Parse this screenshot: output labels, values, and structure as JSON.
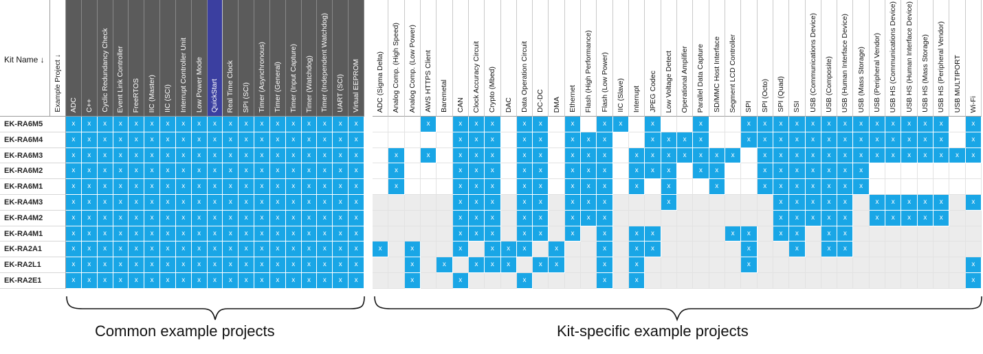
{
  "header": {
    "kit_name_label": "Kit Name ↓",
    "example_project_label": "Example Project ↓"
  },
  "colors": {
    "common_header": "#5b5b5b",
    "highlight_header": "#3b3fa0",
    "checked_cell": "#19a6e6"
  },
  "common_projects": [
    "ADC",
    "C++",
    "Cyclic Redundancy Check",
    "Event Link Controller",
    "FreeRTOS",
    "IIC (Master)",
    "IIC (SCI)",
    "Interrupt Controller Unit",
    "Low Power Mode",
    "QuickStart",
    "Real Time Clock",
    "SPI (SCI)",
    "Timer (Asynchronous)",
    "Timer (General)",
    "Timer (Input Capture)",
    "Timer (Watchdog)",
    "Timer (Independent Watchdog)",
    "UART (SCI)",
    "Virtual EEPROM"
  ],
  "highlighted_project": "QuickStart",
  "specific_projects": [
    "ADC (Sigma Delta)",
    "Analog Comp. (High Speed)",
    "Analog Comp. (Low Power)",
    "AWS HTTPS Client",
    "Baremetal",
    "CAN",
    "Clock Accuracy Circuit",
    "Crypto (Mbed)",
    "DAC",
    "Data Operation Circuit",
    "DC-DC",
    "DMA",
    "Ethernet",
    "Flash (High Performance)",
    "Flash (Low Power)",
    "IIC (Slave)",
    "Interrupt",
    "JPEG Codec",
    "Low Voltage Detect",
    "Operational Amplifier",
    "Parallel Data Capture",
    "SD/MMC Host Interface",
    "Segment LCD Controller",
    "SPI",
    "SPI (Octo)",
    "SPI (Quad)",
    "SSI",
    "USB (Communications Device)",
    "USB (Composite)",
    "USB (Human Interface Device)",
    "USB (Mass Storage)",
    "USB (Peripheral Vendor)",
    "USB HS (Communications Device)",
    "USB HS (Human Interface Device)",
    "USB HS (Mass Storage)",
    "USB HS (Peripheral Vendor)",
    "USB MULTIPORT",
    "Wi-Fi"
  ],
  "mark": "x",
  "kits": [
    {
      "name": "EK-RA6M5",
      "specific": "00010111011010110100100111111111111101"
    },
    {
      "name": "EK-RA6M4",
      "specific": "00000111011011100111100111111111111101"
    },
    {
      "name": "EK-RA6M3",
      "specific": "01010111011011101111111011111111111111"
    },
    {
      "name": "EK-RA6M2",
      "specific": "01000111011011101110110011111110000000"
    },
    {
      "name": "EK-RA6M1",
      "specific": "01000111011011101010010011111110000000"
    },
    {
      "name": "EK-RA4M3",
      "specific": "00000111011011100010000001111101111101"
    },
    {
      "name": "EK-RA4M2",
      "specific": "00000111011011100000000001111101111100"
    },
    {
      "name": "EK-RA4M1",
      "specific": "00000111011010101100001101101100000000"
    },
    {
      "name": "EK-RA2A1",
      "specific": "10100101110100101100000100101100000000"
    },
    {
      "name": "EK-RA2L1",
      "specific": "00101011101100101000000100000000000001"
    },
    {
      "name": "EK-RA2E1",
      "specific": "00100100010000101000000000000000000001"
    }
  ],
  "groups": {
    "common_label": "Common example projects",
    "specific_label": "Kit-specific example projects"
  }
}
